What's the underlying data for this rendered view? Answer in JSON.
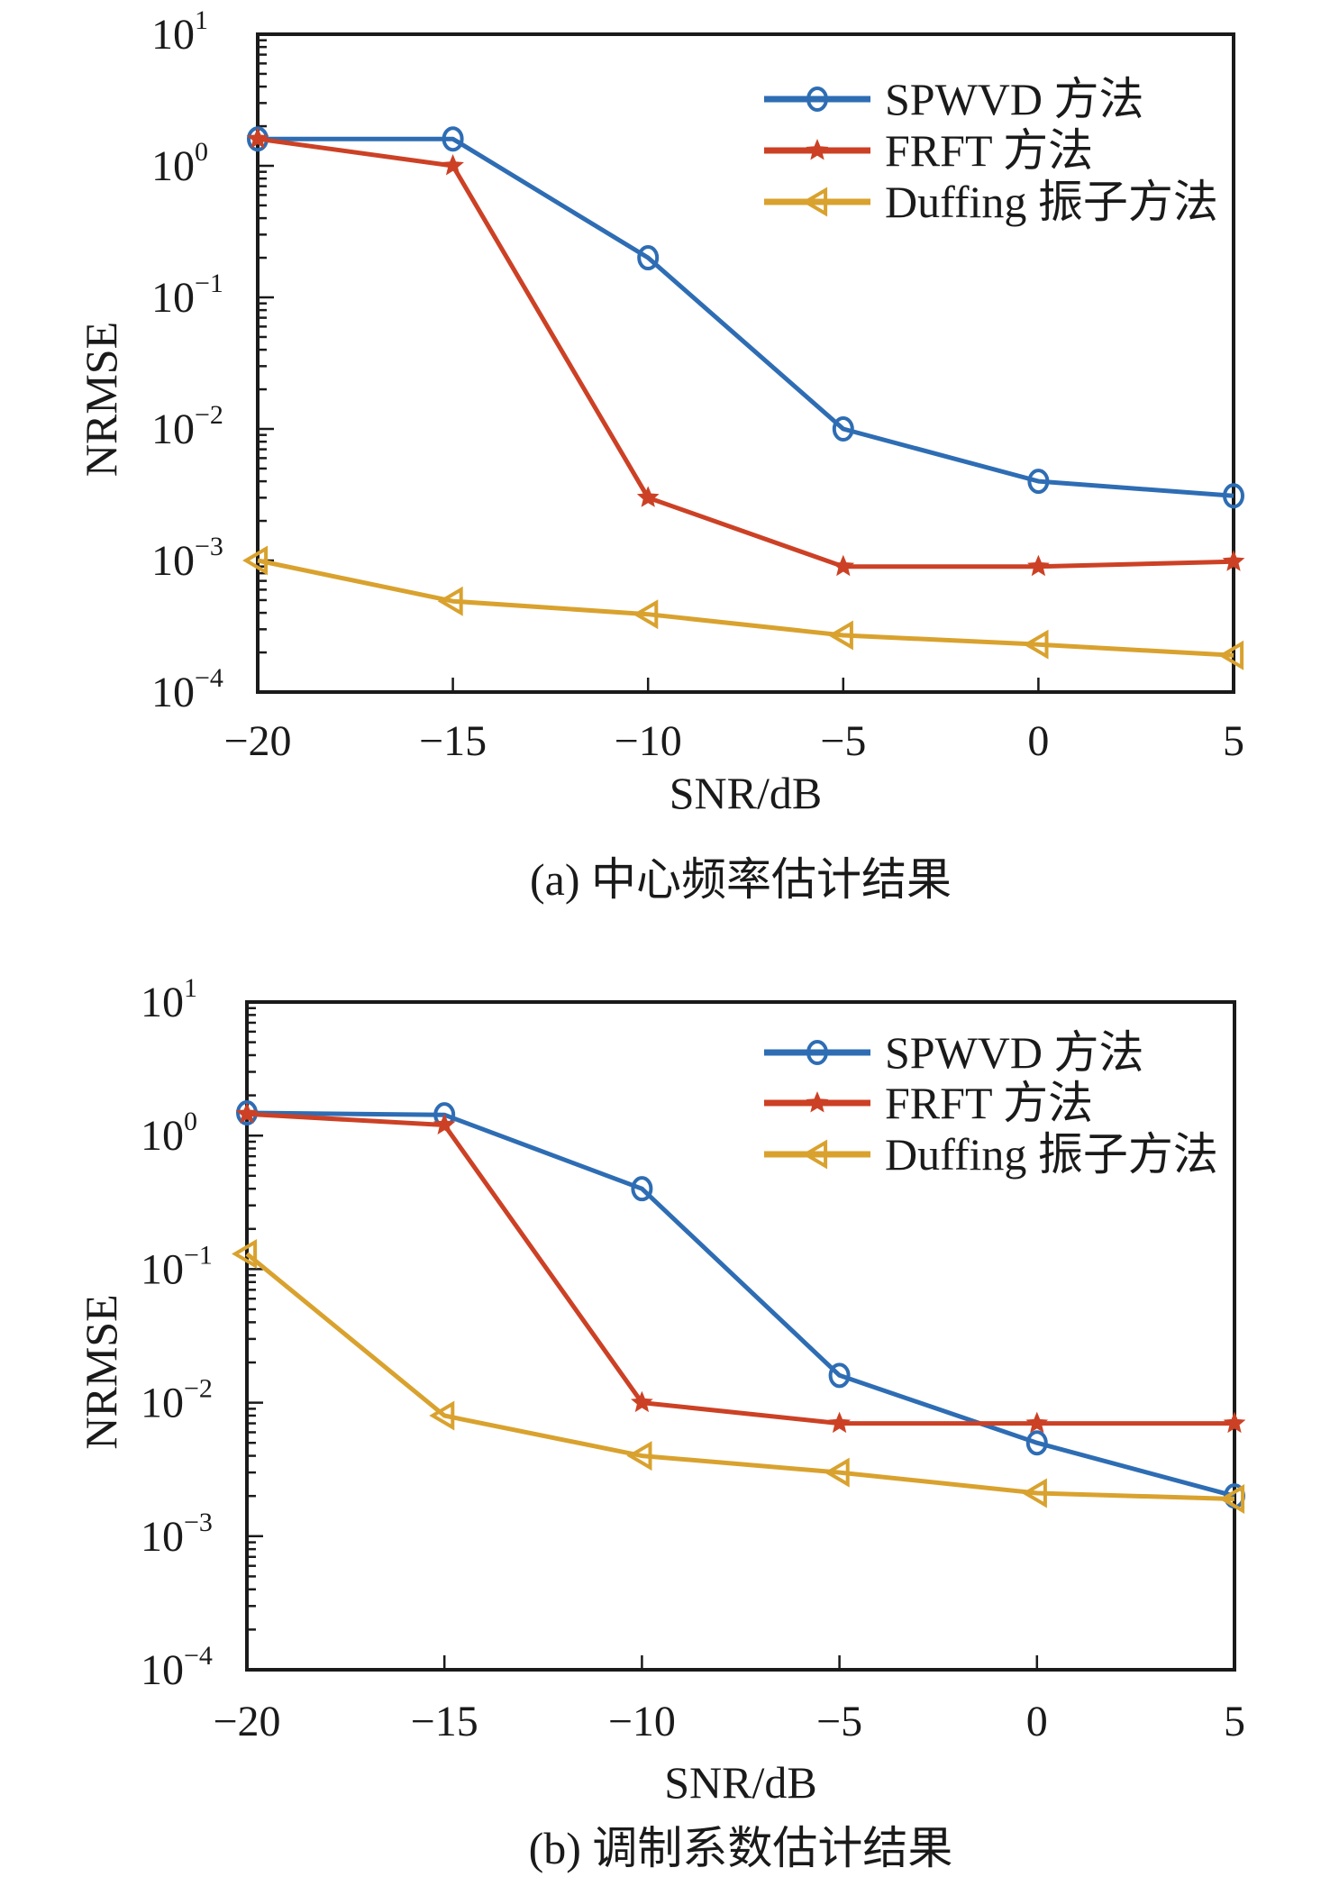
{
  "figure": {
    "panels_count": 2
  },
  "colors": {
    "spwvd": "#2e6db4",
    "frft": "#cc4125",
    "duffing": "#d9a22e",
    "axis": "#1a1a1a"
  },
  "chart_data": [
    {
      "type": "line",
      "id": "a",
      "title": "",
      "caption": "(a) 中心频率估计结果",
      "xlabel": "SNR/dB",
      "ylabel": "NRMSE",
      "yscale": "log",
      "xlim": [
        -20,
        5
      ],
      "ylim": [
        0.0001,
        10
      ],
      "x": [
        -20,
        -15,
        -10,
        -5,
        0,
        5
      ],
      "x_tick_labels": [
        "−20",
        "−15",
        "−10",
        "−5",
        "0",
        "5"
      ],
      "y_ticks": [
        1,
        0,
        -1,
        -2,
        -3,
        -4
      ],
      "y_tick_base": "10",
      "y_tick_exponents": [
        "1",
        "0",
        "−1",
        "−2",
        "−3",
        "−4"
      ],
      "legend_position": "top-right",
      "grid": false,
      "series": [
        {
          "name": "SPWVD 方法",
          "key": "spwvd",
          "marker": "circle",
          "values": [
            1.6,
            1.6,
            0.2,
            0.01,
            0.004,
            0.0031
          ]
        },
        {
          "name": "FRFT 方法",
          "key": "frft",
          "marker": "star",
          "values": [
            1.6,
            1.0,
            0.003,
            0.0009,
            0.0009,
            0.00098
          ]
        },
        {
          "name": "Duffing 振子方法",
          "key": "duffing",
          "marker": "triangle-left",
          "values": [
            0.001,
            0.00049,
            0.00039,
            0.00027,
            0.00023,
            0.00019
          ]
        }
      ]
    },
    {
      "type": "line",
      "id": "b",
      "title": "",
      "caption": "(b) 调制系数估计结果",
      "xlabel": "SNR/dB",
      "ylabel": "NRMSE",
      "yscale": "log",
      "xlim": [
        -20,
        5
      ],
      "ylim": [
        0.0001,
        10
      ],
      "x": [
        -20,
        -15,
        -10,
        -5,
        0,
        5
      ],
      "x_tick_labels": [
        "−20",
        "−15",
        "−10",
        "−5",
        "0",
        "5"
      ],
      "y_ticks": [
        1,
        0,
        -1,
        -2,
        -3,
        -4
      ],
      "y_tick_base": "10",
      "y_tick_exponents": [
        "1",
        "0",
        "−1",
        "−2",
        "−3",
        "−4"
      ],
      "legend_position": "top-right",
      "grid": false,
      "series": [
        {
          "name": "SPWVD 方法",
          "key": "spwvd",
          "marker": "circle",
          "values": [
            1.48,
            1.43,
            0.4,
            0.016,
            0.005,
            0.002
          ]
        },
        {
          "name": "FRFT 方法",
          "key": "frft",
          "marker": "star",
          "values": [
            1.45,
            1.2,
            0.01,
            0.007,
            0.007,
            0.007
          ]
        },
        {
          "name": "Duffing 振子方法",
          "key": "duffing",
          "marker": "triangle-left",
          "values": [
            0.13,
            0.008,
            0.004,
            0.003,
            0.0021,
            0.0019
          ]
        }
      ]
    }
  ]
}
